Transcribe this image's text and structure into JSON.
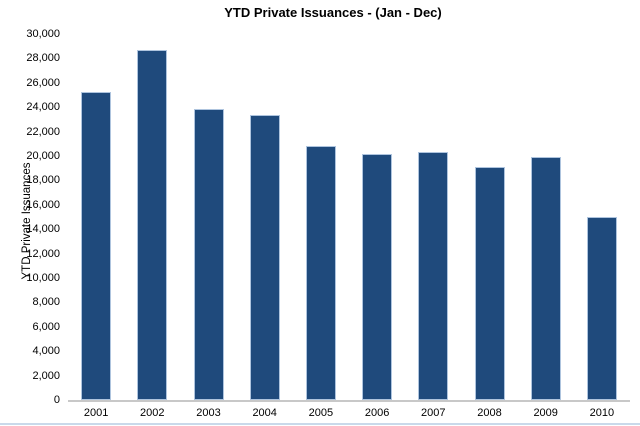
{
  "chart_data": {
    "type": "bar",
    "title": "YTD Private Issuances - (Jan - Dec)",
    "ylabel": "YTD Private Issuances",
    "xlabel": "",
    "categories": [
      "2001",
      "2002",
      "2003",
      "2004",
      "2005",
      "2006",
      "2007",
      "2008",
      "2009",
      "2010"
    ],
    "values": [
      25250,
      28700,
      23850,
      23400,
      20850,
      20200,
      20350,
      19100,
      19900,
      15000
    ],
    "ylim": [
      0,
      30000
    ],
    "ytick_values": [
      0,
      2000,
      4000,
      6000,
      8000,
      10000,
      12000,
      14000,
      16000,
      18000,
      20000,
      22000,
      24000,
      26000,
      28000,
      30000
    ],
    "ytick_labels": [
      "0",
      "2,000",
      "4,000",
      "6,000",
      "8,000",
      "10,000",
      "12,000",
      "14,000",
      "16,000",
      "18,000",
      "20,000",
      "22,000",
      "24,000",
      "26,000",
      "28,000",
      "30,000"
    ],
    "grid": "off",
    "legend": "none",
    "colors": {
      "bar_fill": "#1F4A7C",
      "bar_border": "#AEC4DE",
      "axis_line": "#C8C8C8",
      "bottom_rule": "#C9D9EA",
      "text": "#000000"
    }
  }
}
